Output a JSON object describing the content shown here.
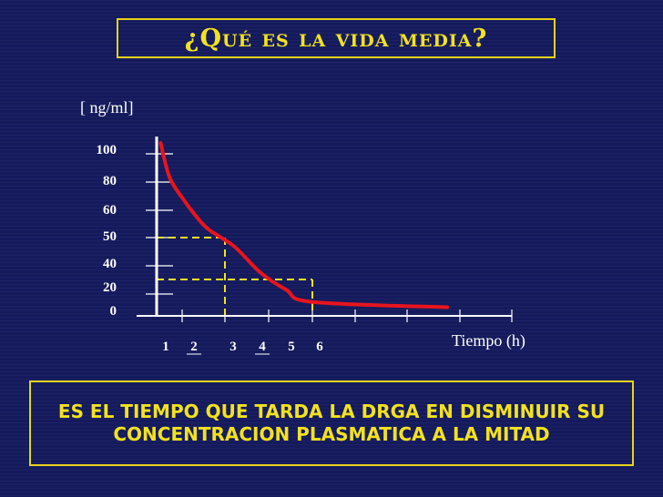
{
  "title": "¿Qué es la vida media?",
  "definition": "ES EL TIEMPO QUE TARDA LA DRGA EN DISMINUIR SU CONCENTRACION PLASMATICA A LA MITAD",
  "colors": {
    "background": "#141a5c",
    "text": "#f2e21e",
    "curve": "#e8141e",
    "axis": "#ffffff"
  },
  "chart_data": {
    "type": "line",
    "ylabel": "[ ng/ml]",
    "xlabel": "Tiempo (h)",
    "y_ticks": [
      "100",
      "80",
      "60",
      "50",
      "40",
      "20",
      "0"
    ],
    "x_ticks": [
      "1",
      "2",
      "3",
      "4",
      "5",
      "6"
    ],
    "series": [
      {
        "x": [
          0.15,
          0.5,
          1,
          1.5,
          2,
          3,
          4,
          5,
          6,
          7
        ],
        "y": [
          100,
          80,
          68,
          58,
          50,
          40,
          25,
          15,
          8,
          5
        ]
      }
    ],
    "half_life_guides": [
      {
        "x": 2,
        "y": 50
      },
      {
        "x": 4,
        "y": 25
      }
    ]
  }
}
